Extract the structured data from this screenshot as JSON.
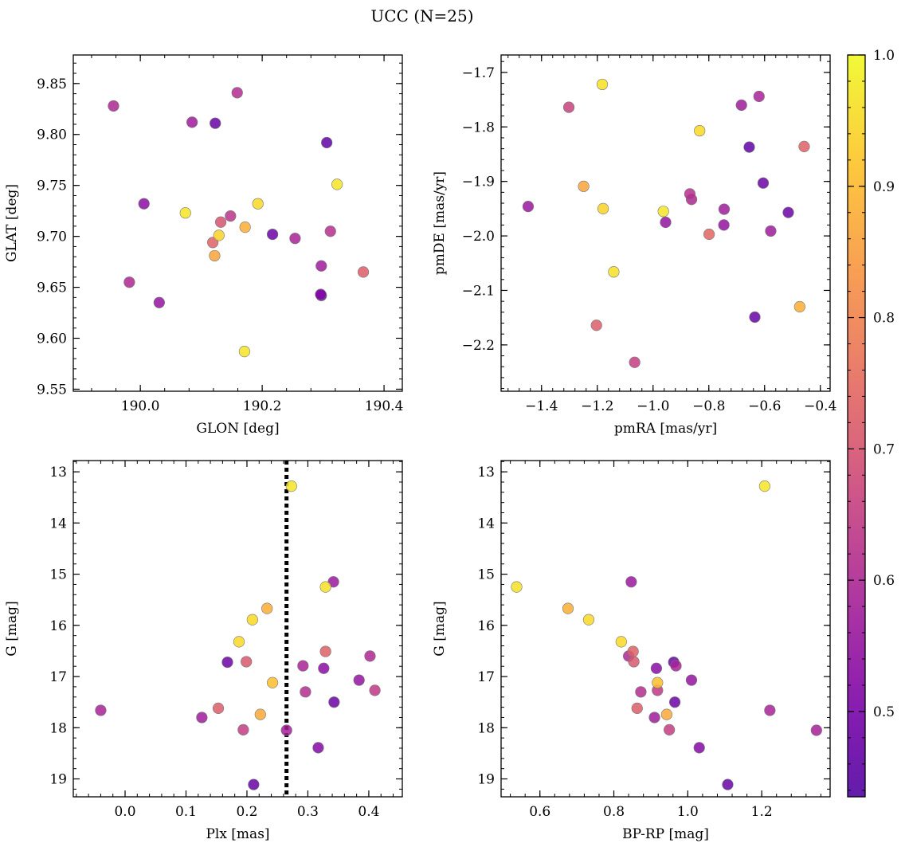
{
  "figure": {
    "title": "UCC (N=25)"
  },
  "colorbar": {
    "min": 0.435,
    "max": 1.0,
    "ticks": [
      "0.5",
      "0.6",
      "0.7",
      "0.8",
      "0.9",
      "1.0"
    ],
    "tick_values": [
      0.5,
      0.6,
      0.7,
      0.8,
      0.9,
      1.0
    ],
    "colormap": "plasma"
  },
  "chart_data": [
    {
      "type": "scatter",
      "xlabel": "GLON [deg]",
      "ylabel": "GLAT [deg]",
      "xlim": [
        189.89,
        190.43
      ],
      "ylim": [
        9.548,
        9.878
      ],
      "xticks": [
        190.0,
        190.2,
        190.4
      ],
      "xticklabels": [
        "190.0",
        "190.2",
        "190.4"
      ],
      "yticks": [
        9.55,
        9.6,
        9.65,
        9.7,
        9.75,
        9.8,
        9.85
      ],
      "yticklabels": [
        "9.55",
        "9.60",
        "9.65",
        "9.70",
        "9.75",
        "9.80",
        "9.85"
      ],
      "y_inverted": false,
      "points": [
        {
          "x": 189.956,
          "y": 9.828,
          "c": 0.6
        },
        {
          "x": 190.085,
          "y": 9.812,
          "c": 0.57
        },
        {
          "x": 190.123,
          "y": 9.811,
          "c": 0.47
        },
        {
          "x": 190.159,
          "y": 9.841,
          "c": 0.61
        },
        {
          "x": 190.306,
          "y": 9.792,
          "c": 0.46
        },
        {
          "x": 190.323,
          "y": 9.751,
          "c": 0.97
        },
        {
          "x": 190.006,
          "y": 9.732,
          "c": 0.53
        },
        {
          "x": 190.074,
          "y": 9.723,
          "c": 0.97
        },
        {
          "x": 190.193,
          "y": 9.732,
          "c": 0.95
        },
        {
          "x": 190.148,
          "y": 9.72,
          "c": 0.63
        },
        {
          "x": 190.132,
          "y": 9.714,
          "c": 0.7
        },
        {
          "x": 190.129,
          "y": 9.701,
          "c": 0.94
        },
        {
          "x": 190.172,
          "y": 9.709,
          "c": 0.88
        },
        {
          "x": 190.119,
          "y": 9.694,
          "c": 0.73
        },
        {
          "x": 190.217,
          "y": 9.702,
          "c": 0.48
        },
        {
          "x": 190.254,
          "y": 9.698,
          "c": 0.59
        },
        {
          "x": 190.312,
          "y": 9.705,
          "c": 0.62
        },
        {
          "x": 190.122,
          "y": 9.681,
          "c": 0.86
        },
        {
          "x": 190.297,
          "y": 9.671,
          "c": 0.57
        },
        {
          "x": 190.366,
          "y": 9.665,
          "c": 0.72
        },
        {
          "x": 189.982,
          "y": 9.655,
          "c": 0.6
        },
        {
          "x": 190.296,
          "y": 9.643,
          "c": 0.52
        },
        {
          "x": 190.297,
          "y": 9.642,
          "c": 0.45
        },
        {
          "x": 190.031,
          "y": 9.635,
          "c": 0.55
        },
        {
          "x": 190.171,
          "y": 9.587,
          "c": 0.97
        }
      ]
    },
    {
      "type": "scatter",
      "xlabel": "pmRA [mas/yr]",
      "ylabel": "pmDE [mas/yr]",
      "xlim": [
        -1.545,
        -0.365
      ],
      "ylim": [
        -2.285,
        -1.668
      ],
      "xticks": [
        -1.4,
        -1.2,
        -1.0,
        -0.8,
        -0.6,
        -0.4
      ],
      "xticklabels": [
        "−1.4",
        "−1.2",
        "−1.0",
        "−0.8",
        "−0.6",
        "−0.4"
      ],
      "yticks": [
        -2.2,
        -2.1,
        -2.0,
        -1.9,
        -1.8,
        -1.7
      ],
      "yticklabels": [
        "−2.2",
        "−2.1",
        "−2.0",
        "−1.9",
        "−1.8",
        "−1.7"
      ],
      "y_inverted": false,
      "points": [
        {
          "x": -1.182,
          "y": -1.722,
          "c": 0.96
        },
        {
          "x": -1.302,
          "y": -1.764,
          "c": 0.66
        },
        {
          "x": -0.683,
          "y": -1.76,
          "c": 0.57
        },
        {
          "x": -0.62,
          "y": -1.744,
          "c": 0.59
        },
        {
          "x": -0.833,
          "y": -1.807,
          "c": 0.95
        },
        {
          "x": -0.655,
          "y": -1.837,
          "c": 0.46
        },
        {
          "x": -0.458,
          "y": -1.836,
          "c": 0.73
        },
        {
          "x": -1.249,
          "y": -1.909,
          "c": 0.86
        },
        {
          "x": -0.605,
          "y": -1.903,
          "c": 0.48
        },
        {
          "x": -0.868,
          "y": -1.923,
          "c": 0.62
        },
        {
          "x": -0.862,
          "y": -1.933,
          "c": 0.6
        },
        {
          "x": -1.448,
          "y": -1.946,
          "c": 0.56
        },
        {
          "x": -1.179,
          "y": -1.95,
          "c": 0.94
        },
        {
          "x": -0.745,
          "y": -1.951,
          "c": 0.57
        },
        {
          "x": -0.963,
          "y": -1.955,
          "c": 0.97
        },
        {
          "x": -0.515,
          "y": -1.957,
          "c": 0.48
        },
        {
          "x": -0.955,
          "y": -1.975,
          "c": 0.55
        },
        {
          "x": -0.746,
          "y": -1.98,
          "c": 0.55
        },
        {
          "x": -0.578,
          "y": -1.991,
          "c": 0.57
        },
        {
          "x": -0.799,
          "y": -1.997,
          "c": 0.74
        },
        {
          "x": -1.141,
          "y": -2.066,
          "c": 0.96
        },
        {
          "x": -0.474,
          "y": -2.13,
          "c": 0.88
        },
        {
          "x": -0.635,
          "y": -2.149,
          "c": 0.47
        },
        {
          "x": -1.203,
          "y": -2.164,
          "c": 0.72
        },
        {
          "x": -1.066,
          "y": -2.232,
          "c": 0.65
        }
      ]
    },
    {
      "type": "scatter",
      "xlabel": "Plx [mas]",
      "ylabel": "G [mag]",
      "xlim": [
        -0.085,
        0.455
      ],
      "ylim": [
        19.35,
        12.78
      ],
      "xticks": [
        0.0,
        0.1,
        0.2,
        0.3,
        0.4
      ],
      "xticklabels": [
        "0.0",
        "0.1",
        "0.2",
        "0.3",
        "0.4"
      ],
      "yticks": [
        13,
        14,
        15,
        16,
        17,
        18,
        19
      ],
      "yticklabels": [
        "13",
        "14",
        "15",
        "16",
        "17",
        "18",
        "19"
      ],
      "y_inverted": true,
      "vline": 0.265,
      "points": [
        {
          "x": 0.273,
          "y": 13.28,
          "c": 0.97
        },
        {
          "x": 0.342,
          "y": 15.15,
          "c": 0.56
        },
        {
          "x": 0.329,
          "y": 15.25,
          "c": 0.96
        },
        {
          "x": 0.233,
          "y": 15.67,
          "c": 0.88
        },
        {
          "x": 0.209,
          "y": 15.89,
          "c": 0.95
        },
        {
          "x": 0.187,
          "y": 16.32,
          "c": 0.95
        },
        {
          "x": 0.329,
          "y": 16.51,
          "c": 0.73
        },
        {
          "x": 0.402,
          "y": 16.6,
          "c": 0.6
        },
        {
          "x": 0.168,
          "y": 16.72,
          "c": 0.48
        },
        {
          "x": 0.199,
          "y": 16.71,
          "c": 0.71
        },
        {
          "x": 0.292,
          "y": 16.79,
          "c": 0.59
        },
        {
          "x": 0.326,
          "y": 16.84,
          "c": 0.53
        },
        {
          "x": 0.384,
          "y": 17.07,
          "c": 0.55
        },
        {
          "x": 0.242,
          "y": 17.12,
          "c": 0.91
        },
        {
          "x": 0.41,
          "y": 17.27,
          "c": 0.64
        },
        {
          "x": 0.296,
          "y": 17.3,
          "c": 0.61
        },
        {
          "x": 0.343,
          "y": 17.5,
          "c": 0.48
        },
        {
          "x": 0.153,
          "y": 17.62,
          "c": 0.72
        },
        {
          "x": -0.04,
          "y": 17.66,
          "c": 0.59
        },
        {
          "x": 0.222,
          "y": 17.74,
          "c": 0.87
        },
        {
          "x": 0.126,
          "y": 17.8,
          "c": 0.57
        },
        {
          "x": 0.194,
          "y": 18.04,
          "c": 0.65
        },
        {
          "x": 0.265,
          "y": 18.05,
          "c": 0.58
        },
        {
          "x": 0.317,
          "y": 18.39,
          "c": 0.52
        },
        {
          "x": 0.211,
          "y": 19.11,
          "c": 0.47
        }
      ]
    },
    {
      "type": "scatter",
      "xlabel": "BP-RP [mag]",
      "ylabel": "G [mag]",
      "xlim": [
        0.495,
        1.385
      ],
      "ylim": [
        19.35,
        12.78
      ],
      "xticks": [
        0.6,
        0.8,
        1.0,
        1.2
      ],
      "xticklabels": [
        "0.6",
        "0.8",
        "1.0",
        "1.2"
      ],
      "yticks": [
        13,
        14,
        15,
        16,
        17,
        18,
        19
      ],
      "yticklabels": [
        "13",
        "14",
        "15",
        "16",
        "17",
        "18",
        "19"
      ],
      "y_inverted": true,
      "points": [
        {
          "x": 1.208,
          "y": 13.28,
          "c": 0.97
        },
        {
          "x": 0.847,
          "y": 15.15,
          "c": 0.56
        },
        {
          "x": 0.537,
          "y": 15.25,
          "c": 0.96
        },
        {
          "x": 0.676,
          "y": 15.67,
          "c": 0.88
        },
        {
          "x": 0.732,
          "y": 15.89,
          "c": 0.95
        },
        {
          "x": 0.82,
          "y": 16.32,
          "c": 0.95
        },
        {
          "x": 0.852,
          "y": 16.51,
          "c": 0.73
        },
        {
          "x": 0.84,
          "y": 16.6,
          "c": 0.6
        },
        {
          "x": 0.962,
          "y": 16.72,
          "c": 0.48
        },
        {
          "x": 0.854,
          "y": 16.71,
          "c": 0.71
        },
        {
          "x": 0.968,
          "y": 16.79,
          "c": 0.59
        },
        {
          "x": 0.915,
          "y": 16.84,
          "c": 0.53
        },
        {
          "x": 1.01,
          "y": 17.07,
          "c": 0.55
        },
        {
          "x": 0.918,
          "y": 17.12,
          "c": 0.91
        },
        {
          "x": 0.918,
          "y": 17.27,
          "c": 0.64
        },
        {
          "x": 0.873,
          "y": 17.3,
          "c": 0.61
        },
        {
          "x": 0.965,
          "y": 17.5,
          "c": 0.48
        },
        {
          "x": 0.863,
          "y": 17.62,
          "c": 0.72
        },
        {
          "x": 1.222,
          "y": 17.66,
          "c": 0.59
        },
        {
          "x": 0.943,
          "y": 17.74,
          "c": 0.87
        },
        {
          "x": 0.91,
          "y": 17.8,
          "c": 0.57
        },
        {
          "x": 0.95,
          "y": 18.04,
          "c": 0.65
        },
        {
          "x": 1.348,
          "y": 18.05,
          "c": 0.58
        },
        {
          "x": 1.031,
          "y": 18.39,
          "c": 0.52
        },
        {
          "x": 1.108,
          "y": 19.11,
          "c": 0.47
        }
      ]
    }
  ]
}
